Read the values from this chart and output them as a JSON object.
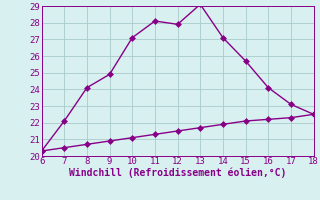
{
  "xlabel": "Windchill (Refroidissement éolien,°C)",
  "line1_x": [
    6,
    7,
    8,
    9,
    10,
    11,
    12,
    13,
    14,
    15,
    16,
    17,
    18
  ],
  "line1_y": [
    20.3,
    22.1,
    24.1,
    24.9,
    27.1,
    28.1,
    27.9,
    29.1,
    27.1,
    25.7,
    24.1,
    23.1,
    22.5
  ],
  "line2_x": [
    6,
    7,
    8,
    9,
    10,
    11,
    12,
    13,
    14,
    15,
    16,
    17,
    18
  ],
  "line2_y": [
    20.3,
    20.5,
    20.7,
    20.9,
    21.1,
    21.3,
    21.5,
    21.7,
    21.9,
    22.1,
    22.2,
    22.3,
    22.5
  ],
  "line_color": "#880088",
  "bg_color": "#d8f0f0",
  "grid_color": "#aacccc",
  "xlim": [
    6,
    18
  ],
  "ylim": [
    20,
    29
  ],
  "xticks": [
    6,
    7,
    8,
    9,
    10,
    11,
    12,
    13,
    14,
    15,
    16,
    17,
    18
  ],
  "yticks": [
    20,
    21,
    22,
    23,
    24,
    25,
    26,
    27,
    28,
    29
  ],
  "markersize": 3,
  "linewidth": 1.0,
  "tick_fontsize": 6.5,
  "xlabel_fontsize": 7.0
}
